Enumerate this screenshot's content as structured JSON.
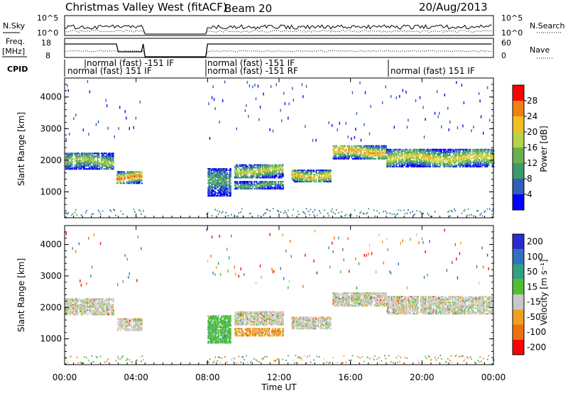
{
  "header": {
    "title": "Christmas Valley West (fitACF)",
    "beam": "Beam 20",
    "date": "20/Aug/2013"
  },
  "panels": {
    "nsky": {
      "label": "N.Sky",
      "right_label": "N.Search",
      "ticks_left": [
        "10^5",
        "10^0"
      ],
      "ticks_right": [
        "10^5",
        "10^0"
      ]
    },
    "freq": {
      "label_line1": "Freq.",
      "label_line2": "[MHz]",
      "right_label": "Nave",
      "ticks_left": [
        "18",
        "8"
      ],
      "ticks_right": [
        "60",
        "0"
      ]
    },
    "cpid": {
      "label": "CPID",
      "modes": [
        "normal (fast) -151 IF",
        "normal (fast) 151 IF",
        "normal (fast) -151 IF",
        "normal (fast) -151 RF",
        "normal (fast) 151 IF"
      ]
    }
  },
  "axes": {
    "x_label": "Time UT",
    "x_ticks": [
      "00:00",
      "04:00",
      "08:00",
      "12:00",
      "16:00",
      "20:00",
      "00:00"
    ],
    "y_label": "Slant Range [km]",
    "y_ticks": [
      "1000",
      "2000",
      "3000",
      "4000"
    ]
  },
  "colorbars": {
    "power": {
      "label": "Power [dB]",
      "ticks": [
        "4",
        "8",
        "12",
        "16",
        "20",
        "24",
        "28"
      ],
      "colors": [
        "#0000ff",
        "#2f5fb7",
        "#3d9a6e",
        "#6ab04c",
        "#b8d24a",
        "#f0c020",
        "#f08010",
        "#ff0000"
      ]
    },
    "velocity": {
      "label": "Velocity [m s⁻¹]",
      "ticks": [
        "200",
        "100",
        "50",
        "15",
        "-15",
        "-50",
        "-100",
        "-200"
      ],
      "colors": [
        "#2a2ad0",
        "#3070c0",
        "#2fa080",
        "#50c030",
        "#c8c8c8",
        "#f0a020",
        "#f07010",
        "#ff0000"
      ]
    }
  },
  "chart_data": [
    {
      "type": "heatmap",
      "title": "Power",
      "xlabel": "Time UT",
      "ylabel": "Slant Range [km]",
      "xlim": [
        0,
        24
      ],
      "ylim": [
        180,
        4600
      ],
      "colorbar_label": "Power [dB]",
      "colorbar_range": [
        0,
        32
      ],
      "echo_bands": [
        {
          "t_start": 0.0,
          "t_end": 2.7,
          "range_center": 1950,
          "range_width": 500,
          "peak_power": 18
        },
        {
          "t_start": 2.9,
          "t_end": 4.3,
          "range_center": 1450,
          "range_width": 400,
          "peak_power": 28
        },
        {
          "t_start": 8.0,
          "t_end": 9.3,
          "range_center": 1300,
          "range_width": 900,
          "peak_power": 12
        },
        {
          "t_start": 9.5,
          "t_end": 12.2,
          "range_center": 1650,
          "range_width": 450,
          "peak_power": 20
        },
        {
          "t_start": 9.5,
          "t_end": 12.2,
          "range_center": 1200,
          "range_width": 250,
          "peak_power": 14
        },
        {
          "t_start": 12.7,
          "t_end": 14.9,
          "range_center": 1500,
          "range_width": 400,
          "peak_power": 24
        },
        {
          "t_start": 15.0,
          "t_end": 18.0,
          "range_center": 2250,
          "range_width": 450,
          "peak_power": 26
        },
        {
          "t_start": 18.0,
          "t_end": 24.0,
          "range_center": 2050,
          "range_width": 550,
          "peak_power": 22
        }
      ]
    },
    {
      "type": "heatmap",
      "title": "Velocity",
      "xlabel": "Time UT",
      "ylabel": "Slant Range [km]",
      "xlim": [
        0,
        24
      ],
      "ylim": [
        180,
        4600
      ],
      "colorbar_label": "Velocity [m s⁻¹]",
      "colorbar_range": [
        -200,
        200
      ],
      "echo_bands": [
        {
          "t_start": 0.0,
          "t_end": 2.7,
          "range_center": 2000,
          "range_width": 500,
          "velocity": 0
        },
        {
          "t_start": 2.9,
          "t_end": 4.3,
          "range_center": 1450,
          "range_width": 400,
          "velocity": 0
        },
        {
          "t_start": 8.0,
          "t_end": 9.3,
          "range_center": 1300,
          "range_width": 900,
          "velocity": 40
        },
        {
          "t_start": 9.5,
          "t_end": 12.2,
          "range_center": 1650,
          "range_width": 450,
          "velocity": 0
        },
        {
          "t_start": 9.5,
          "t_end": 12.2,
          "range_center": 1200,
          "range_width": 250,
          "velocity": -40
        },
        {
          "t_start": 12.7,
          "t_end": 14.9,
          "range_center": 1500,
          "range_width": 400,
          "velocity": 0
        },
        {
          "t_start": 15.0,
          "t_end": 18.0,
          "range_center": 2250,
          "range_width": 450,
          "velocity": 0
        },
        {
          "t_start": 18.0,
          "t_end": 24.0,
          "range_center": 2050,
          "range_width": 550,
          "velocity": 0
        }
      ]
    }
  ]
}
